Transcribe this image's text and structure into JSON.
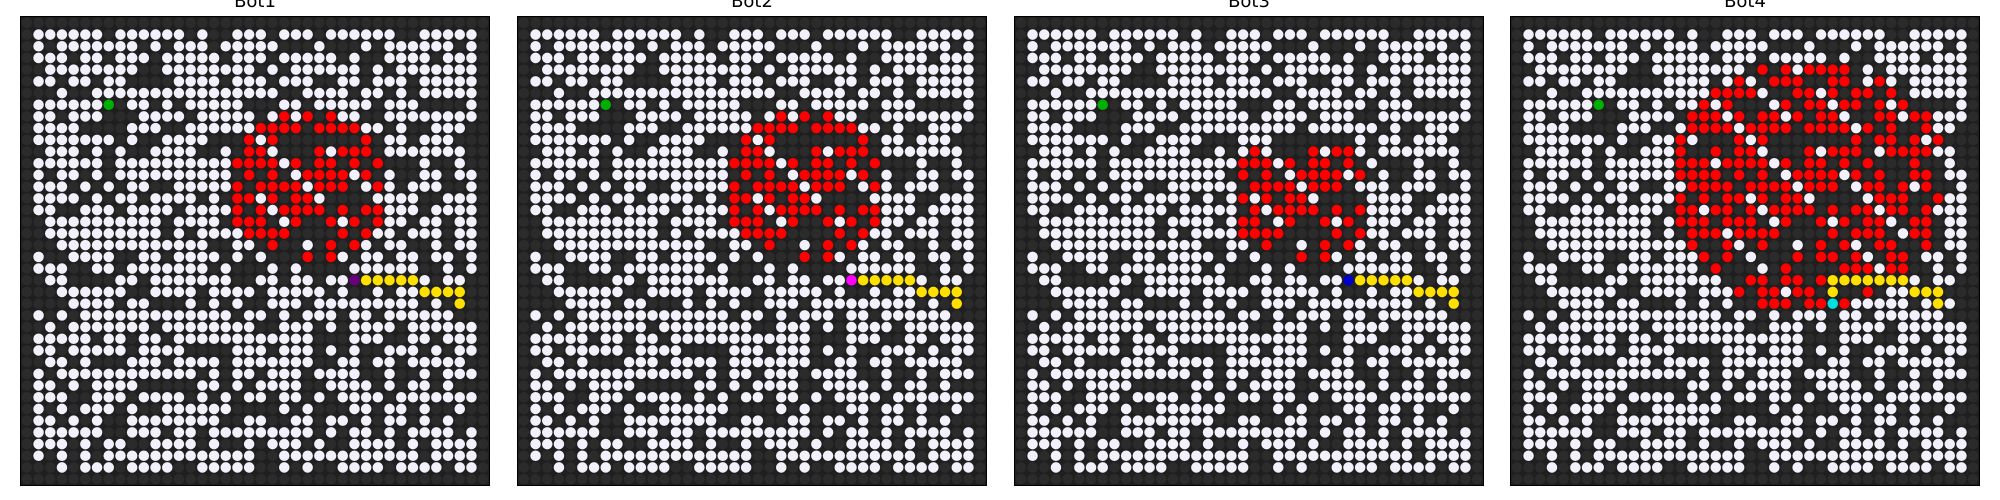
{
  "grid_size": 40,
  "seed_note": "",
  "colors": {
    "background": "#1f1f1f",
    "open_cell": "#f2f0fa",
    "blocked_cell": "#2b2b2b",
    "fire": "#ff0000",
    "path": "#ffe000",
    "button_start": "#00b000",
    "bot1": "#6a0080",
    "bot2": "#ff00ff",
    "bot3": "#0000cc",
    "bot4": "#00e0e0"
  },
  "panels": [
    {
      "title": "Bot1",
      "bot_color": "#6a0080",
      "button_cell": [
        7,
        7
      ],
      "bot_cell": [
        28,
        22
      ],
      "fire_center": [
        24,
        14
      ],
      "fire_radius": 7,
      "path": [
        [
          29,
          22
        ],
        [
          30,
          22
        ],
        [
          31,
          22
        ],
        [
          32,
          22
        ],
        [
          33,
          22
        ],
        [
          34,
          23
        ],
        [
          35,
          23
        ],
        [
          36,
          23
        ],
        [
          37,
          23
        ],
        [
          37,
          24
        ]
      ]
    },
    {
      "title": "Bot2",
      "bot_color": "#ff00ff",
      "button_cell": [
        7,
        7
      ],
      "bot_cell": [
        28,
        22
      ],
      "fire_center": [
        24,
        14
      ],
      "fire_radius": 7,
      "path": [
        [
          29,
          22
        ],
        [
          30,
          22
        ],
        [
          31,
          22
        ],
        [
          32,
          22
        ],
        [
          33,
          22
        ],
        [
          34,
          23
        ],
        [
          35,
          23
        ],
        [
          36,
          23
        ],
        [
          37,
          23
        ],
        [
          37,
          24
        ]
      ]
    },
    {
      "title": "Bot3",
      "bot_color": "#0000cc",
      "button_cell": [
        7,
        7
      ],
      "bot_cell": [
        28,
        22
      ],
      "fire_center": [
        24,
        15
      ],
      "fire_radius": 6,
      "path": [
        [
          29,
          22
        ],
        [
          30,
          22
        ],
        [
          31,
          22
        ],
        [
          32,
          22
        ],
        [
          33,
          22
        ],
        [
          34,
          23
        ],
        [
          35,
          23
        ],
        [
          36,
          23
        ],
        [
          37,
          23
        ],
        [
          37,
          24
        ]
      ]
    },
    {
      "title": "Bot4",
      "bot_color": "#00e0e0",
      "button_cell": [
        7,
        7
      ],
      "bot_cell": [
        27,
        24
      ],
      "fire_center": [
        25,
        14
      ],
      "fire_radius": 12,
      "path": [
        [
          27,
          23
        ],
        [
          27,
          22
        ],
        [
          28,
          22
        ],
        [
          29,
          22
        ],
        [
          30,
          22
        ],
        [
          31,
          22
        ],
        [
          32,
          22
        ],
        [
          33,
          22
        ],
        [
          34,
          23
        ],
        [
          35,
          23
        ],
        [
          36,
          23
        ],
        [
          36,
          24
        ]
      ]
    }
  ]
}
